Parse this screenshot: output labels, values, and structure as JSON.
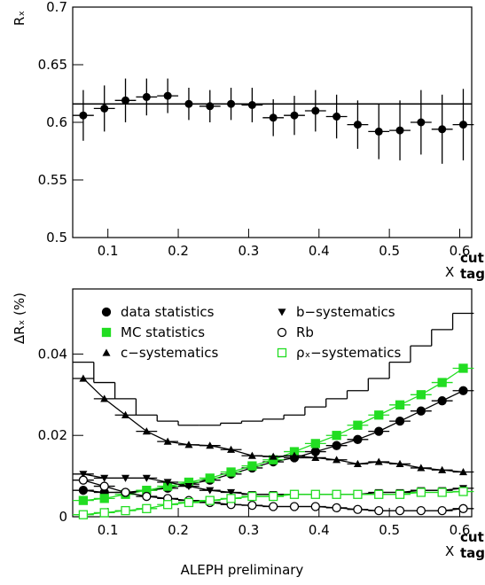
{
  "chart_data": [
    {
      "type": "errorbar",
      "ylabel": "Rₓ",
      "xlabel": "X",
      "xlabel_sup": "cut",
      "xlabel_sub": "tag",
      "xlim": [
        0.05,
        0.617
      ],
      "xticks": [
        0.1,
        0.2,
        0.3,
        0.4,
        0.5,
        0.6
      ],
      "ylim": [
        0.5,
        0.7
      ],
      "yticks": [
        0.5,
        0.55,
        0.6,
        0.65,
        0.7
      ],
      "x": [
        0.065,
        0.095,
        0.125,
        0.155,
        0.185,
        0.215,
        0.245,
        0.275,
        0.305,
        0.335,
        0.365,
        0.395,
        0.425,
        0.455,
        0.485,
        0.515,
        0.545,
        0.575,
        0.605
      ],
      "bin_width": 0.03,
      "hline": 0.616,
      "color": "#000000",
      "values": [
        0.606,
        0.612,
        0.619,
        0.622,
        0.623,
        0.616,
        0.614,
        0.616,
        0.615,
        0.604,
        0.606,
        0.61,
        0.605,
        0.598,
        0.592,
        0.593,
        0.6,
        0.594,
        0.598
      ],
      "errors": [
        0.022,
        0.02,
        0.019,
        0.016,
        0.015,
        0.014,
        0.014,
        0.014,
        0.015,
        0.016,
        0.017,
        0.018,
        0.019,
        0.021,
        0.024,
        0.026,
        0.028,
        0.03,
        0.031
      ]
    },
    {
      "type": "line",
      "ylabel": "ΔRₓ (%)",
      "xlabel": "X",
      "xlabel_sup": "cut",
      "xlabel_sub": "tag",
      "xlim": [
        0.05,
        0.617
      ],
      "xticks": [
        0.1,
        0.2,
        0.3,
        0.4,
        0.5,
        0.6
      ],
      "ylim": [
        0,
        0.056
      ],
      "yticks": [
        0,
        0.02,
        0.04
      ],
      "x": [
        0.065,
        0.095,
        0.125,
        0.155,
        0.185,
        0.215,
        0.245,
        0.275,
        0.305,
        0.335,
        0.365,
        0.395,
        0.425,
        0.455,
        0.485,
        0.515,
        0.545,
        0.575,
        0.605
      ],
      "bin_width": 0.03,
      "series": [
        {
          "name": "data statistics",
          "color": "#000000",
          "marker": "circle",
          "values": [
            0.0065,
            0.006,
            0.006,
            0.0065,
            0.007,
            0.008,
            0.009,
            0.0105,
            0.012,
            0.0135,
            0.0145,
            0.016,
            0.0175,
            0.019,
            0.021,
            0.0235,
            0.026,
            0.0285,
            0.031
          ]
        },
        {
          "name": "MC statistics",
          "color": "#22dd22",
          "marker": "square",
          "values": [
            0.004,
            0.0045,
            0.0055,
            0.0065,
            0.0075,
            0.0085,
            0.0095,
            0.011,
            0.0125,
            0.014,
            0.016,
            0.018,
            0.02,
            0.0225,
            0.025,
            0.0275,
            0.03,
            0.033,
            0.0365
          ]
        },
        {
          "name": "c−systematics",
          "color": "#000000",
          "marker": "triangle-up",
          "values": [
            0.034,
            0.029,
            0.025,
            0.021,
            0.0185,
            0.0177,
            0.0175,
            0.0165,
            0.015,
            0.0148,
            0.015,
            0.0145,
            0.014,
            0.013,
            0.0135,
            0.013,
            0.012,
            0.0115,
            0.011
          ]
        },
        {
          "name": "b−systematics",
          "color": "#000000",
          "marker": "triangle-down",
          "values": [
            0.0105,
            0.0095,
            0.0095,
            0.0095,
            0.0085,
            0.0075,
            0.0065,
            0.006,
            0.0055,
            0.0055,
            0.0055,
            0.0055,
            0.0055,
            0.0055,
            0.006,
            0.006,
            0.0065,
            0.0065,
            0.007
          ]
        },
        {
          "name": "Rb",
          "color": "#000000",
          "marker": "circle-open",
          "values": [
            0.009,
            0.0075,
            0.006,
            0.005,
            0.0045,
            0.004,
            0.0035,
            0.003,
            0.0028,
            0.0025,
            0.0025,
            0.0025,
            0.0022,
            0.0018,
            0.0015,
            0.0015,
            0.0015,
            0.0015,
            0.002
          ]
        },
        {
          "name": "ρₓ−systematics",
          "color": "#22dd22",
          "marker": "square-open",
          "values": [
            0.0005,
            0.001,
            0.0015,
            0.002,
            0.003,
            0.0035,
            0.004,
            0.0045,
            0.005,
            0.005,
            0.0055,
            0.0055,
            0.0055,
            0.0055,
            0.0055,
            0.0055,
            0.006,
            0.006,
            0.0062
          ]
        },
        {
          "color": "#000000",
          "marker": "step",
          "values": [
            0.038,
            0.033,
            0.029,
            0.025,
            0.0235,
            0.0225,
            0.0225,
            0.023,
            0.0235,
            0.024,
            0.025,
            0.027,
            0.029,
            0.031,
            0.034,
            0.038,
            0.042,
            0.046,
            0.05
          ]
        }
      ]
    },
    {
      "type": "caption",
      "text": "ALEPH preliminary"
    }
  ]
}
